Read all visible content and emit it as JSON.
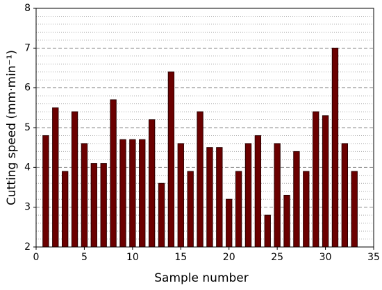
{
  "chart_data": {
    "type": "bar",
    "x_label": "Sample number",
    "y_label": "Cutting speed (mm·min⁻¹)",
    "x": [
      1,
      2,
      3,
      4,
      5,
      6,
      7,
      8,
      9,
      10,
      11,
      12,
      13,
      14,
      15,
      16,
      17,
      18,
      19,
      20,
      21,
      22,
      23,
      24,
      25,
      26,
      27,
      28,
      29,
      30,
      31,
      32,
      33
    ],
    "values": [
      4.8,
      5.5,
      3.9,
      5.4,
      4.6,
      4.1,
      4.1,
      5.7,
      4.7,
      4.7,
      4.7,
      5.2,
      3.6,
      6.4,
      4.6,
      3.9,
      5.4,
      4.5,
      4.5,
      3.2,
      3.9,
      4.6,
      4.8,
      2.8,
      4.6,
      3.3,
      4.4,
      3.9,
      5.4,
      5.3,
      7.0,
      4.6,
      3.9
    ],
    "color": "#6b0000",
    "xlim": [
      0,
      35
    ],
    "xticks": [
      0,
      5,
      10,
      15,
      20,
      25,
      30,
      35
    ],
    "ylim": [
      2,
      8
    ],
    "yticks": [
      2,
      3,
      4,
      5,
      6,
      7,
      8
    ],
    "y_minor_ticks": [
      2.2,
      2.4,
      2.6,
      2.8,
      3.2,
      3.4,
      3.6,
      3.8,
      4.2,
      4.4,
      4.6,
      4.8,
      5.2,
      5.4,
      5.6,
      5.8,
      6.2,
      6.4,
      6.6,
      6.8,
      7.2,
      7.4,
      7.6,
      7.8
    ],
    "grid": true
  }
}
